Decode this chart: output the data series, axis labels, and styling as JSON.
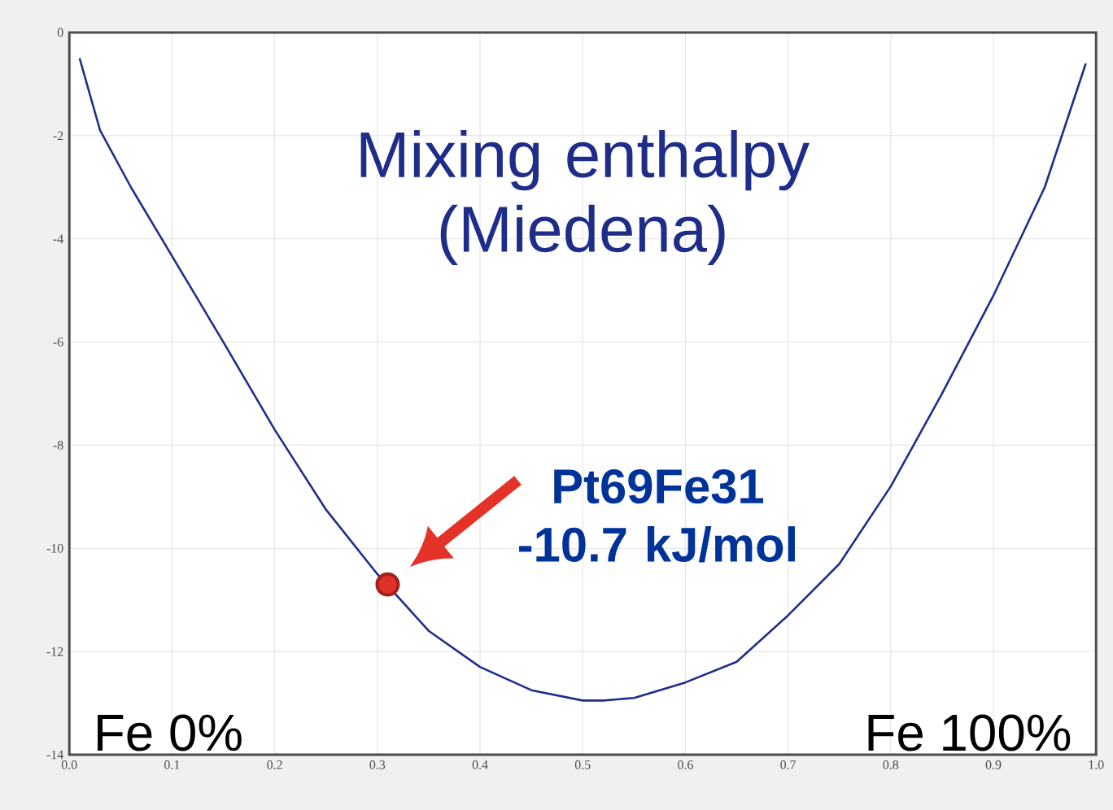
{
  "chart_data": {
    "type": "line",
    "title": "Mixing enthalpy (Miedena)",
    "x": [
      0.01,
      0.03,
      0.06,
      0.09,
      0.12,
      0.15,
      0.2,
      0.25,
      0.3,
      0.35,
      0.4,
      0.45,
      0.5,
      0.52,
      0.55,
      0.6,
      0.65,
      0.7,
      0.75,
      0.8,
      0.85,
      0.9,
      0.95,
      0.99
    ],
    "series": [
      {
        "color": "#1f2d8a",
        "values": [
          -0.5,
          -1.9,
          -3.0,
          -4.0,
          -5.0,
          -6.0,
          -7.7,
          -9.25,
          -10.5,
          -11.6,
          -12.3,
          -12.75,
          -12.95,
          -12.95,
          -12.9,
          -12.6,
          -12.2,
          -11.3,
          -10.3,
          -8.8,
          -7.0,
          -5.1,
          -3.0,
          -0.6
        ]
      },
      {
        "type": "scatter",
        "color": "#e0302a",
        "x": [
          0.31
        ],
        "values": [
          -10.7
        ]
      }
    ],
    "annotations": [
      {
        "text": "Pt69Fe31 -10.7 kJ/mol",
        "x": 0.31,
        "y": -10.7
      },
      "Fe 0%",
      "Fe 100%"
    ],
    "xlim": [
      0.0,
      1.0
    ],
    "xticks": [
      {
        "value": 0,
        "label": "0.0"
      },
      0.1,
      0.2,
      0.3,
      0.4,
      0.5,
      0.6,
      0.7,
      0.8,
      0.9,
      {
        "value": 1,
        "label": "1.0"
      }
    ],
    "ylim": [
      -14,
      0
    ],
    "yticks": [
      -14,
      -12,
      -10,
      -8,
      -6,
      -4,
      -2,
      0
    ],
    "grid": true,
    "line_style": "solid"
  }
}
